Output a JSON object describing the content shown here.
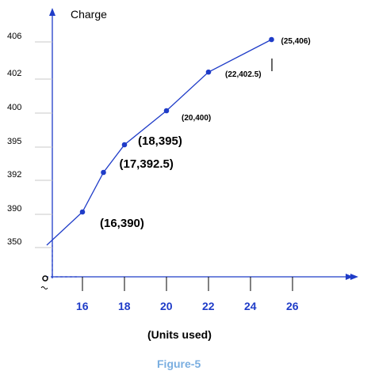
{
  "chart_data": {
    "type": "line",
    "ylabel": "Charge",
    "xlabel": "(Units used)",
    "caption": "Figure-5",
    "origin_label": "O",
    "x_ticks": [
      "16",
      "18",
      "20",
      "22",
      "24",
      "26"
    ],
    "y_ticks": [
      "350",
      "390",
      "392",
      "395",
      "400",
      "402",
      "406"
    ],
    "series": [
      {
        "color": "#1f3cc8",
        "points": [
          {
            "x": 14.3,
            "y": 350,
            "label": ""
          },
          {
            "x": 16,
            "y": 390,
            "label": "(16,390)"
          },
          {
            "x": 17,
            "y": 392.5,
            "label": "(17,392.5)"
          },
          {
            "x": 18,
            "y": 395,
            "label": "(18,395)"
          },
          {
            "x": 20,
            "y": 400,
            "label": "(20,400)"
          },
          {
            "x": 22,
            "y": 402.5,
            "label": "(22,402.5)"
          },
          {
            "x": 25,
            "y": 406,
            "label": "(25,406)"
          }
        ]
      }
    ],
    "axis_color": "#1f3cc8",
    "caption_color": "#7aaee0",
    "note": "Y axis is non-linear: ticks are evenly spaced categories"
  }
}
